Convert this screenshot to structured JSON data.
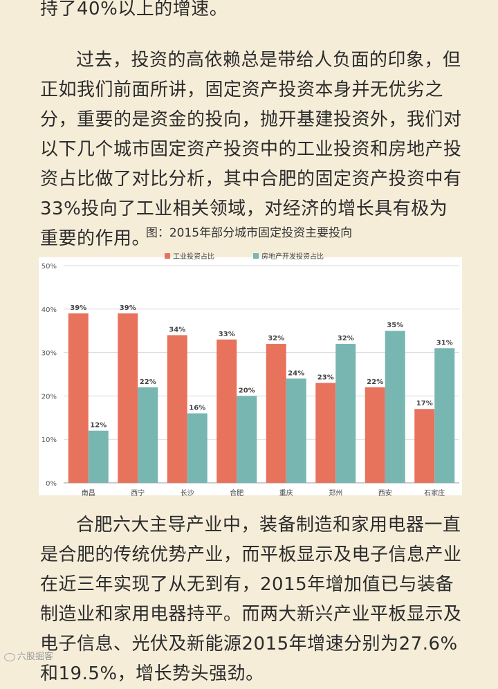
{
  "text": {
    "p1": "持了40%以上的增速。",
    "p2": "过去，投资的高依赖总是带给人负面的印象，但正如我们前面所讲，固定资产投资本身并无优劣之分，重要的是资金的投向，抛开基建投资外，我们对以下几个城市固定资产投资中的工业投资和房地产投资占比做了对比分析，其中合肥的固定资产投资中有33%投向了工业相关领域，对经济的增长具有极为重要的作用。",
    "p3": "合肥六大主导产业中，装备制造和家用电器一直是合肥的传统优势产业，而平板显示及电子信息产业在近三年实现了从无到有，2015年增加值已与装备制造业和家用电器持平。而两大新兴产业平板显示及电子信息、光伏及新能源2015年增速分别为27.6%和19.5%，增长势头强劲。",
    "watermark": "六股掘客"
  },
  "chart_data": {
    "type": "bar",
    "title": "图：2015年部分城市固定投资主要投向",
    "categories": [
      "南昌",
      "西宁",
      "长沙",
      "合肥",
      "重庆",
      "郑州",
      "西安",
      "石家庄"
    ],
    "series": [
      {
        "name": "工业投资占比",
        "color": "#e8735c",
        "values": [
          39,
          39,
          34,
          33,
          32,
          23,
          22,
          17
        ],
        "labels": [
          "39%",
          "39%",
          "34%",
          "33%",
          "32%",
          "23%",
          "22%",
          "17%"
        ]
      },
      {
        "name": "房地产开发投资占比",
        "color": "#78b6b2",
        "values": [
          12,
          22,
          16,
          20,
          24,
          32,
          35,
          31
        ],
        "labels": [
          "12%",
          "22%",
          "16%",
          "20%",
          "24%",
          "32%",
          "35%",
          "31%"
        ]
      }
    ],
    "ylim": [
      0,
      50
    ],
    "yticks": [
      "0%",
      "10%",
      "20%",
      "30%",
      "40%",
      "50%"
    ],
    "grid": true,
    "legend": "top"
  }
}
